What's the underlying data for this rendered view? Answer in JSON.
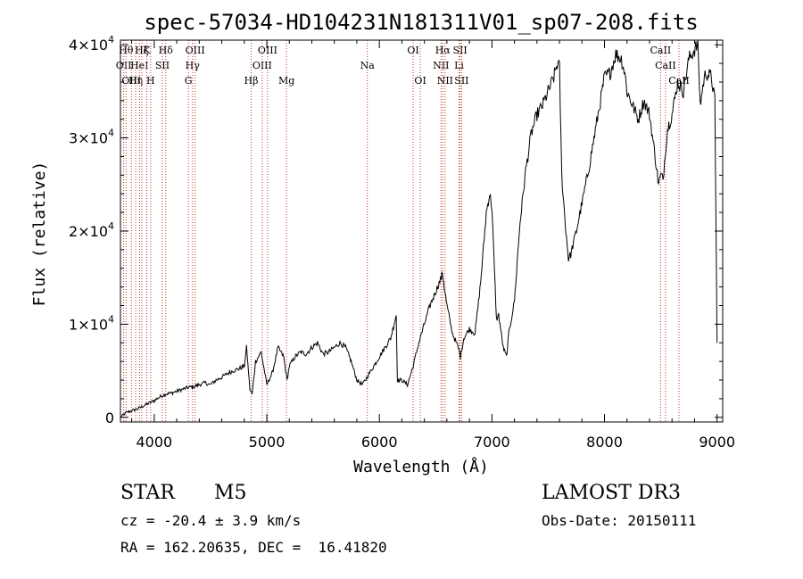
{
  "chart_data": {
    "type": "line",
    "title": "spec-57034-HD104231N181311V01_sp07-208.fits",
    "xlabel": "Wavelength (Å)",
    "ylabel": "Flux (relative)",
    "xlim": [
      3700,
      9050
    ],
    "ylim": [
      -500,
      40500
    ],
    "x_ticks": [
      {
        "value": 4000,
        "label": "4000"
      },
      {
        "value": 5000,
        "label": "5000"
      },
      {
        "value": 6000,
        "label": "6000"
      },
      {
        "value": 7000,
        "label": "7000"
      },
      {
        "value": 8000,
        "label": "8000"
      },
      {
        "value": 9000,
        "label": "9000"
      }
    ],
    "y_ticks": [
      {
        "value": 0,
        "mant": "0",
        "exp": ""
      },
      {
        "value": 10000,
        "mant": "1×10",
        "exp": "4"
      },
      {
        "value": 20000,
        "mant": "2×10",
        "exp": "4"
      },
      {
        "value": 30000,
        "mant": "3×10",
        "exp": "4"
      },
      {
        "value": 40000,
        "mant": "4×10",
        "exp": "4"
      }
    ],
    "series": [
      {
        "name": "flux",
        "x": [
          3700,
          3750,
          3800,
          3850,
          3900,
          3950,
          4000,
          4050,
          4100,
          4150,
          4200,
          4250,
          4300,
          4350,
          4400,
          4450,
          4500,
          4550,
          4600,
          4650,
          4700,
          4750,
          4800,
          4820,
          4850,
          4870,
          4900,
          4950,
          5000,
          5050,
          5100,
          5150,
          5180,
          5200,
          5250,
          5300,
          5350,
          5400,
          5450,
          5500,
          5550,
          5600,
          5650,
          5700,
          5750,
          5800,
          5850,
          5900,
          5950,
          6000,
          6050,
          6100,
          6150,
          6160,
          6200,
          6250,
          6300,
          6350,
          6400,
          6450,
          6500,
          6550,
          6560,
          6600,
          6650,
          6700,
          6720,
          6750,
          6800,
          6850,
          6900,
          6950,
          6980,
          7000,
          7040,
          7060,
          7100,
          7130,
          7150,
          7200,
          7250,
          7300,
          7350,
          7400,
          7450,
          7500,
          7550,
          7580,
          7600,
          7620,
          7650,
          7680,
          7700,
          7750,
          7800,
          7850,
          7900,
          7950,
          8000,
          8050,
          8100,
          8150,
          8180,
          8200,
          8250,
          8300,
          8350,
          8400,
          8450,
          8480,
          8500,
          8520,
          8540,
          8560,
          8600,
          8650,
          8700,
          8750,
          8800,
          8830,
          8850,
          8880,
          8900,
          8950,
          8980,
          9000
        ],
        "y": [
          0,
          500,
          700,
          900,
          1200,
          1500,
          1800,
          2200,
          2500,
          2600,
          2800,
          3000,
          3200,
          3300,
          3500,
          3700,
          3500,
          4000,
          4300,
          4700,
          5000,
          5200,
          5500,
          7500,
          3000,
          2500,
          6000,
          7000,
          3500,
          4800,
          7500,
          6500,
          4000,
          5500,
          6500,
          7000,
          6800,
          7500,
          8000,
          6800,
          7000,
          7500,
          8000,
          7500,
          6000,
          4000,
          3500,
          4500,
          5500,
          6500,
          7500,
          8500,
          11000,
          4000,
          4000,
          3500,
          5500,
          8000,
          10000,
          12000,
          13500,
          15000,
          15500,
          12000,
          9000,
          7500,
          6500,
          8500,
          9500,
          9000,
          14500,
          22000,
          24000,
          22500,
          10500,
          11000,
          7500,
          6500,
          9000,
          12500,
          21000,
          26500,
          30500,
          32500,
          33500,
          35000,
          36500,
          38000,
          37500,
          26000,
          21000,
          17000,
          17500,
          20000,
          23000,
          26000,
          29500,
          33000,
          36500,
          37000,
          39000,
          38500,
          37000,
          35000,
          33500,
          32000,
          34000,
          32500,
          28000,
          25000,
          26000,
          25500,
          28500,
          31000,
          32500,
          36000,
          35000,
          38500,
          39500,
          40000,
          33500,
          36000,
          37000,
          36500,
          34000,
          8000
        ]
      }
    ],
    "line_labels": [
      {
        "x": 3729,
        "row": 1,
        "text": "OII"
      },
      {
        "x": 3750,
        "row": 0,
        "text": "Hθ"
      },
      {
        "x": 3798,
        "row": 2,
        "text": "OIII"
      },
      {
        "x": 3835,
        "row": 2,
        "text": "Hη"
      },
      {
        "x": 3869,
        "row": 1,
        "text": "HeI"
      },
      {
        "x": 3889,
        "row": 0,
        "text": "Hζ"
      },
      {
        "x": 3934,
        "row": 0,
        "text": "K"
      },
      {
        "x": 3968,
        "row": 2,
        "text": "H"
      },
      {
        "x": 4072,
        "row": 1,
        "text": "SII"
      },
      {
        "x": 4102,
        "row": 0,
        "text": "Hδ"
      },
      {
        "x": 4304,
        "row": 2,
        "text": "G"
      },
      {
        "x": 4340,
        "row": 1,
        "text": "Hγ"
      },
      {
        "x": 4363,
        "row": 0,
        "text": "OIII"
      },
      {
        "x": 4861,
        "row": 2,
        "text": "Hβ"
      },
      {
        "x": 4959,
        "row": 1,
        "text": "OIII"
      },
      {
        "x": 5007,
        "row": 0,
        "text": "OIII"
      },
      {
        "x": 5175,
        "row": 2,
        "text": "Mg"
      },
      {
        "x": 5893,
        "row": 1,
        "text": "Na"
      },
      {
        "x": 6300,
        "row": 0,
        "text": "OI"
      },
      {
        "x": 6364,
        "row": 2,
        "text": "OI"
      },
      {
        "x": 6548,
        "row": 1,
        "text": "NII"
      },
      {
        "x": 6563,
        "row": 0,
        "text": "Hα"
      },
      {
        "x": 6584,
        "row": 2,
        "text": "NII"
      },
      {
        "x": 6708,
        "row": 1,
        "text": "Li"
      },
      {
        "x": 6717,
        "row": 0,
        "text": "SII"
      },
      {
        "x": 6731,
        "row": 2,
        "text": "SII"
      },
      {
        "x": 8498,
        "row": 0,
        "text": "CaII"
      },
      {
        "x": 8542,
        "row": 1,
        "text": "CaII"
      },
      {
        "x": 8662,
        "row": 2,
        "text": "CaII"
      }
    ]
  },
  "info": {
    "object_class": "STAR",
    "subclass": "M5",
    "survey": "LAMOST DR3",
    "redshift": "cz = -20.4 ± 3.9 km/s",
    "obs_date": "Obs-Date: 20150111",
    "coords": "RA = 162.20635, DEC =  16.41820"
  }
}
